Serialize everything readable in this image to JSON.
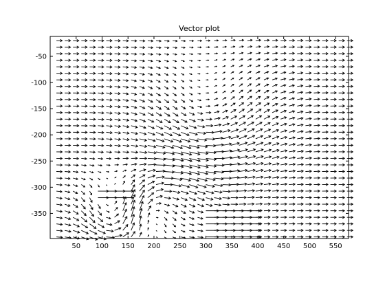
{
  "chart_data": {
    "type": "quiver",
    "title": "Vector plot",
    "xlabel": "",
    "ylabel": "",
    "xlim": [
      0,
      575
    ],
    "ylim": [
      -398,
      -12
    ],
    "x_ticks": [
      50,
      100,
      150,
      200,
      250,
      300,
      350,
      400,
      450,
      500,
      550
    ],
    "y_ticks": [
      -50,
      -100,
      -150,
      -200,
      -250,
      -300,
      -350
    ],
    "grid": false,
    "legend": "none",
    "arrow_color": "#000000",
    "field": {
      "x_start": 12,
      "x_step": 16,
      "x_count": 36,
      "y_start": -20,
      "y_step": -12.5,
      "y_count": 31,
      "background_vector": [
        1.0,
        0.0
      ],
      "features": [
        {
          "type": "vortex",
          "center": [
            120,
            -345
          ],
          "strength": 1.4,
          "radius": 60
        },
        {
          "type": "vortex",
          "center": [
            185,
            -360
          ],
          "strength": -1.1,
          "radius": 45
        },
        {
          "type": "swirl",
          "center": [
            300,
            -170
          ],
          "strength": 0.9,
          "radius": 110
        },
        {
          "type": "swirl",
          "center": [
            230,
            -300
          ],
          "strength": -0.6,
          "radius": 70
        },
        {
          "type": "jet",
          "region": [
            300,
            -395,
            390,
            -335
          ],
          "vector": [
            2.2,
            0.0
          ]
        },
        {
          "type": "jet",
          "region": [
            90,
            -320,
            150,
            -298
          ],
          "vector": [
            1.8,
            0.0
          ]
        }
      ]
    }
  }
}
